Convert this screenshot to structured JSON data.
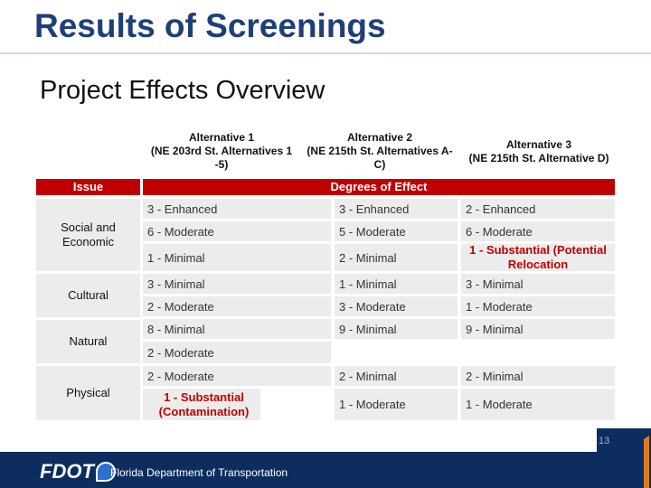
{
  "slide": {
    "title": "Results of Screenings",
    "subtitle": "Project Effects Overview",
    "page_number": "13"
  },
  "columns": {
    "alt1": "Alternative 1\n(NE 203rd St. Alternatives 1\n-5)",
    "alt2": "Alternative 2\n(NE 215th St. Alternatives A-\nC)",
    "alt3": "Alternative 3\n(NE 215th St. Alternative D)"
  },
  "table": {
    "issue_header": "Issue",
    "degrees_header": "Degrees of Effect",
    "issues": {
      "social_economic": "Social and Economic",
      "cultural": "Cultural",
      "natural": "Natural",
      "physical": "Physical"
    },
    "rows": [
      {
        "a1": "3 - Enhanced",
        "a2": "3 - Enhanced",
        "a3": "2 - Enhanced"
      },
      {
        "a1": "6 - Moderate",
        "a2": "5 - Moderate",
        "a3": "6 - Moderate"
      },
      {
        "a1": "1 - Minimal",
        "a2": "2 - Minimal",
        "a3": "1 - Substantial (Potential Relocation"
      },
      {
        "a1": "3 - Minimal",
        "a2": "1 - Minimal",
        "a3": "3 - Minimal"
      },
      {
        "a1": "2 - Moderate",
        "a2": "3 - Moderate",
        "a3": "1 - Moderate"
      },
      {
        "a1": "8 - Minimal",
        "a2": "9 - Minimal",
        "a3": "9 - Minimal"
      },
      {
        "a1": "2 - Moderate",
        "a2": "",
        "a3": ""
      },
      {
        "a1": "2 - Moderate",
        "a2": "2 - Minimal",
        "a3": "2 - Minimal"
      },
      {
        "a1": "1 - Substantial (Contamination)",
        "a2": "1 - Moderate",
        "a3": "1 - Moderate"
      }
    ]
  },
  "footer": {
    "logo_text": "FDOT",
    "org_name": "Florida Department of Transportation"
  },
  "colors": {
    "title": "#1f3f7a",
    "header_bg": "#c00000",
    "highlight_text": "#c00000",
    "cell_bg": "#ececec",
    "footer_bg": "#0d2d5e"
  }
}
